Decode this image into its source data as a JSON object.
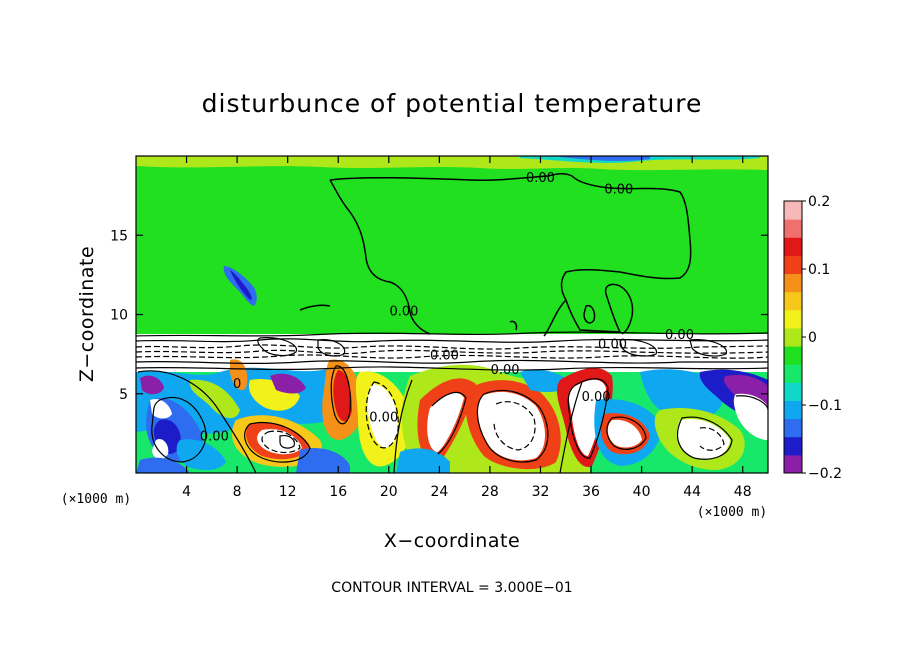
{
  "chart_data": {
    "type": "heatmap",
    "title": "disturbunce of potential temperature",
    "xlabel": "X−coordinate",
    "ylabel": "Z−coordinate",
    "x_unit": "(×1000 m)",
    "y_unit": "(×1000 m)",
    "xlim": [
      0,
      50
    ],
    "ylim": [
      0,
      20
    ],
    "x_ticks": [
      4,
      8,
      12,
      16,
      20,
      24,
      28,
      32,
      36,
      40,
      44,
      48
    ],
    "y_ticks": [
      5,
      10,
      15
    ],
    "footer": "CONTOUR INTERVAL = 3.000E−01",
    "colorbar": {
      "range": [
        -0.2,
        0.2
      ],
      "tick_values": [
        0.2,
        0.1,
        0,
        -0.1,
        -0.2
      ],
      "tick_labels": [
        "0.2",
        "0.1",
        "0",
        "−0.1",
        "−0.2"
      ],
      "colors": [
        "#8c1fa8",
        "#1c1cc8",
        "#2e6cf0",
        "#0fa8f0",
        "#10d8c8",
        "#17e86a",
        "#20e020",
        "#aee81a",
        "#f2f21a",
        "#f7c81a",
        "#f59018",
        "#f04018",
        "#e01818",
        "#f07070",
        "#f8b8b8"
      ]
    },
    "contour_labels": [
      {
        "text": "0.00",
        "x": 32.0,
        "z": 18.6
      },
      {
        "text": "0.00",
        "x": 38.2,
        "z": 17.9
      },
      {
        "text": "0.00",
        "x": 21.2,
        "z": 10.2
      },
      {
        "text": "0.00",
        "x": 24.4,
        "z": 7.4
      },
      {
        "text": "0.00",
        "x": 29.2,
        "z": 6.5
      },
      {
        "text": "0.00",
        "x": 43.0,
        "z": 8.7
      },
      {
        "text": "0.00",
        "x": 37.7,
        "z": 8.1
      },
      {
        "text": "0.00",
        "x": 36.4,
        "z": 4.8
      },
      {
        "text": "0.00",
        "x": 19.6,
        "z": 3.5
      },
      {
        "text": "0.00",
        "x": 6.2,
        "z": 2.3
      },
      {
        "text": "0",
        "x": 8.0,
        "z": 5.6
      }
    ]
  }
}
